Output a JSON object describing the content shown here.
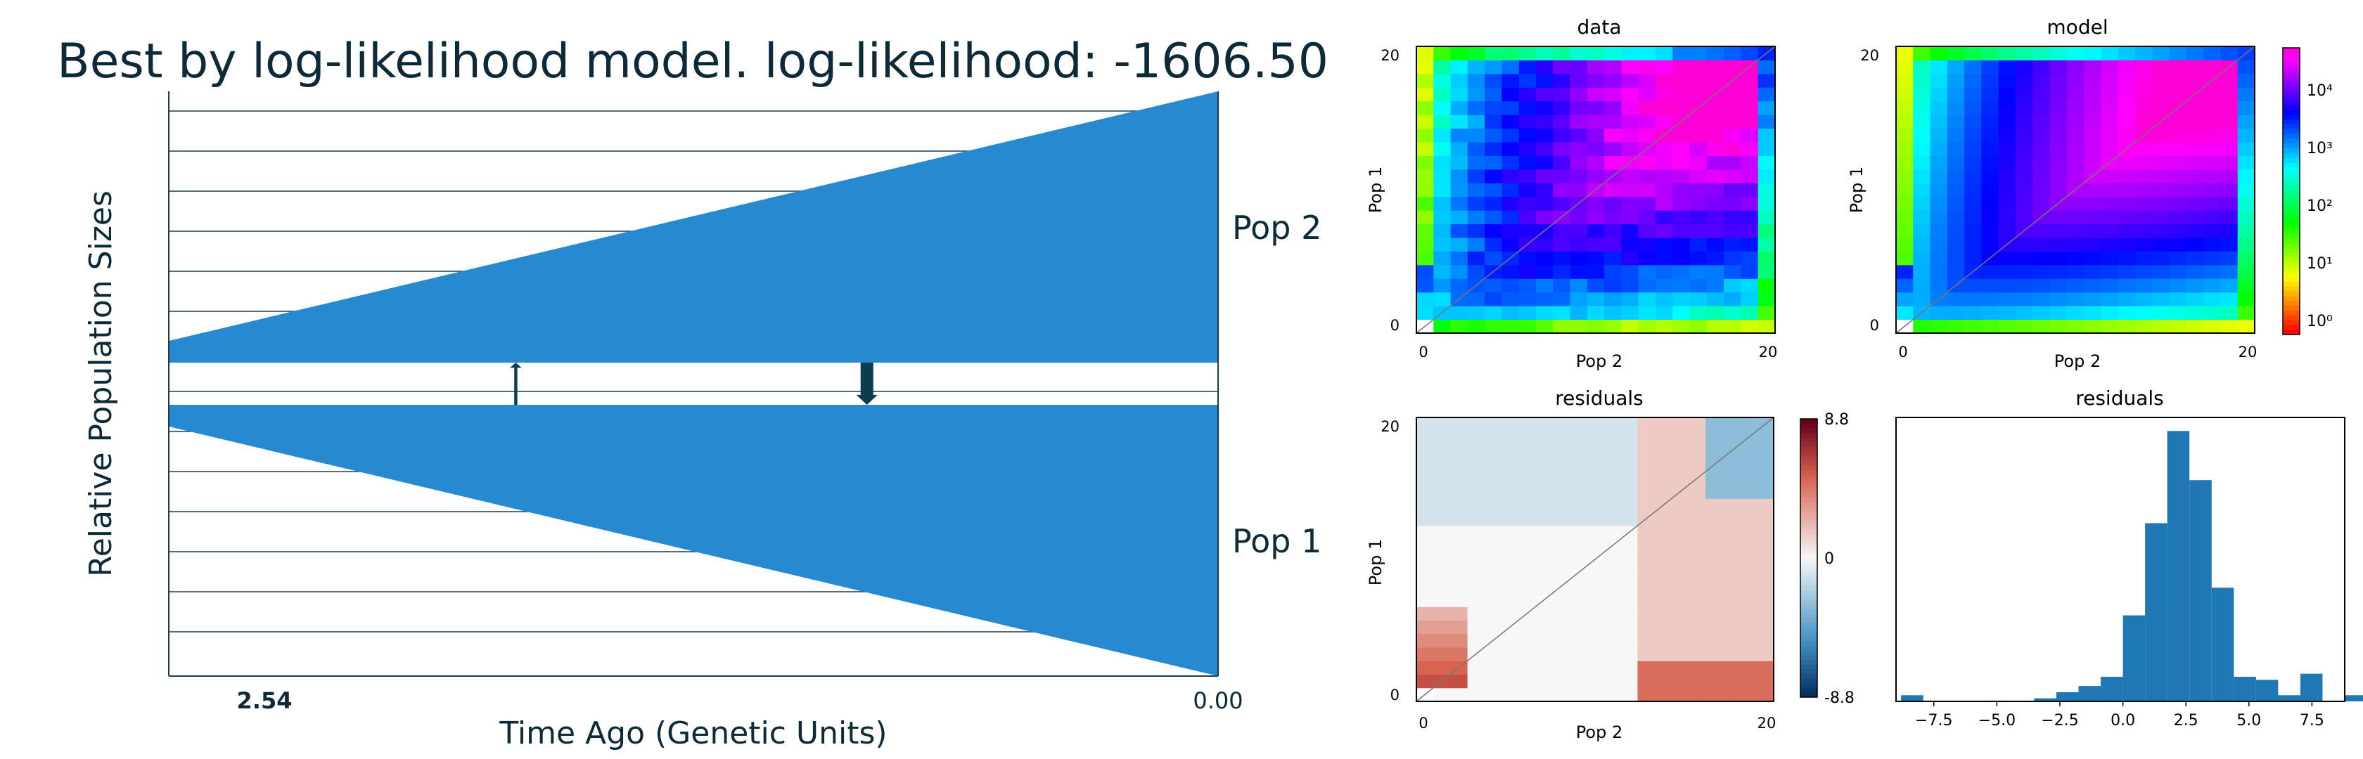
{
  "main_title": "Best by log-likelihood model. log-likelihood: -1606.50",
  "colors": {
    "pop_fill": "#2789d0",
    "dark_navy": "#0e2a38",
    "grid_line": "#1e3a4f",
    "arrow": "#0b3d4f"
  },
  "chart_data": [
    {
      "type": "area",
      "name": "demographic-model",
      "ylabel": "Relative Population Sizes",
      "xlabel": "Time Ago (Genetic Units)",
      "x_ticks": [
        "2.54",
        "0.00"
      ],
      "x_range": [
        2.54,
        0.0
      ],
      "split_time": 2.54,
      "populations": [
        {
          "label": "Pop 2",
          "relative_size_start": 0.08,
          "relative_size_end": 1.0
        },
        {
          "label": "Pop 1",
          "relative_size_start": 0.08,
          "relative_size_end": 1.0
        }
      ],
      "migrations": [
        {
          "from": "Pop 1",
          "to": "Pop 2",
          "time": 1.7,
          "rate_weight": 0.15
        },
        {
          "from": "Pop 2",
          "to": "Pop 1",
          "time": 0.85,
          "rate_weight": 1.0
        }
      ]
    },
    {
      "type": "heatmap",
      "title": "data",
      "xlabel": "Pop 2",
      "ylabel": "Pop 1",
      "x_ticks": [
        "0",
        "20"
      ],
      "y_ticks": [
        "0",
        "20"
      ],
      "size": 21,
      "scale": "log"
    },
    {
      "type": "heatmap",
      "title": "model",
      "xlabel": "Pop 2",
      "ylabel": "Pop 1",
      "x_ticks": [
        "0",
        "20"
      ],
      "y_ticks": [
        "0",
        "20"
      ],
      "size": 21,
      "scale": "log",
      "colorbar_ticks": [
        "10⁰",
        "10¹",
        "10²",
        "10³",
        "10⁴"
      ]
    },
    {
      "type": "heatmap",
      "title": "residuals",
      "xlabel": "Pop 2",
      "ylabel": "Pop 1",
      "x_ticks": [
        "0",
        "20"
      ],
      "y_ticks": [
        "0",
        "20"
      ],
      "size": 21,
      "vlim": [
        -8.8,
        8.8
      ],
      "colorbar_ticks": [
        "8.8",
        "0",
        "-8.8"
      ]
    },
    {
      "type": "bar",
      "title": "residuals",
      "x_ticks": [
        "−7.5",
        "−5.0",
        "−2.5",
        "0.0",
        "2.5",
        "5.0",
        "7.5"
      ],
      "xlim": [
        -9.0,
        8.8
      ],
      "bin_width": 0.88,
      "bin_start": -8.8,
      "counts": [
        2,
        0,
        0,
        0,
        0,
        0,
        1,
        3,
        5,
        8,
        28,
        58,
        88,
        72,
        37,
        8,
        7,
        2,
        9,
        0,
        2,
        1
      ]
    }
  ]
}
